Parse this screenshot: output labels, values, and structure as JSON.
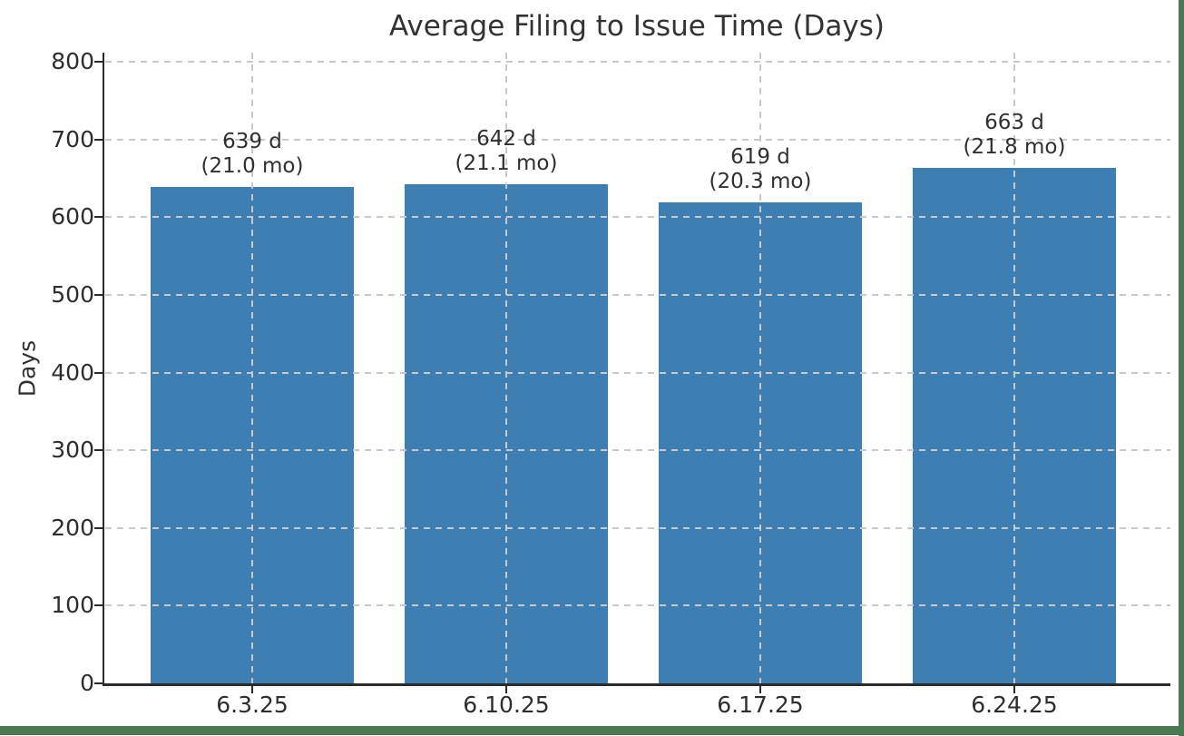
{
  "frame": {
    "border_color": "#4b7a52",
    "background": "#ffffff"
  },
  "chart_data": {
    "type": "bar",
    "title": "Average Filing to Issue Time (Days)",
    "ylabel": "Days",
    "xlabel": "",
    "categories": [
      "6.3.25",
      "6.10.25",
      "6.17.25",
      "6.24.25"
    ],
    "values": [
      639,
      642,
      619,
      663
    ],
    "bar_annotations": [
      [
        "639 d",
        "(21.0 mo)"
      ],
      [
        "642 d",
        "(21.1 mo)"
      ],
      [
        "619 d",
        "(20.3 mo)"
      ],
      [
        "663 d",
        "(21.8 mo)"
      ]
    ],
    "ylim": [
      0,
      800
    ],
    "yticks": [
      0,
      100,
      200,
      300,
      400,
      500,
      600,
      700,
      800
    ],
    "grid": true,
    "grid_style": "dashed",
    "legend": false,
    "bar_color": "#3d7eb3",
    "grid_color": "#c9c9c9",
    "axis_color": "#2b2b2b",
    "text_color": "#303030"
  }
}
